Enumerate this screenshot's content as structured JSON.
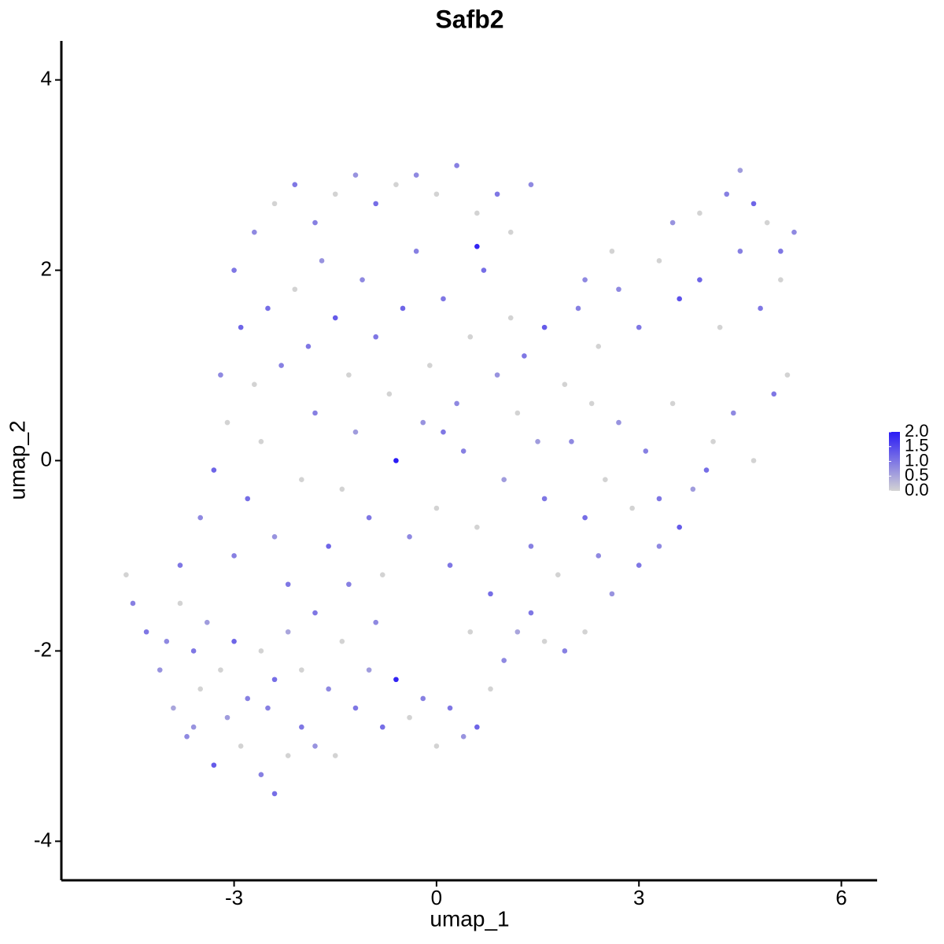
{
  "chart_data": {
    "type": "scatter",
    "title": "Safb2",
    "x_label": "umap_1",
    "y_label": "umap_2",
    "xlim": [
      -5.56,
      6.53
    ],
    "ylim": [
      -4.41,
      4.41
    ],
    "xticks": [
      -3,
      0,
      3,
      6
    ],
    "yticks": [
      -4,
      -2,
      0,
      2,
      4
    ],
    "colors": [
      "#d3d3d3",
      "#2a1bf5"
    ],
    "colorlim": [
      0,
      2
    ],
    "colorticks": [
      {
        "value": 0,
        "label": "0.0"
      },
      {
        "value": 0.5,
        "label": "0.5"
      },
      {
        "value": 1,
        "label": "1.0"
      },
      {
        "value": 1.5,
        "label": "1.5"
      },
      {
        "value": 2,
        "label": "2.0"
      }
    ],
    "x": [
      -4.6,
      -4.5,
      -4.3,
      -4.1,
      -3.9,
      -3.7,
      -3.5,
      -3.3,
      -3.1,
      -2.9,
      -2.6,
      -2.4,
      -2.2,
      -2.0,
      -1.8,
      -1.5,
      -4.0,
      -3.8,
      -3.6,
      -3.4,
      -3.2,
      -3.0,
      -2.8,
      -2.6,
      -2.4,
      -2.2,
      -2.0,
      -1.8,
      -1.6,
      -1.4,
      -1.2,
      -1.0,
      -0.8,
      -0.6,
      -0.4,
      -0.2,
      0.0,
      0.2,
      0.4,
      0.6,
      0.8,
      1.0,
      1.2,
      1.4,
      1.6,
      1.9,
      2.2,
      2.6,
      3.0,
      3.3,
      3.6,
      -3.8,
      -3.5,
      -3.3,
      -3.1,
      -3.0,
      -2.8,
      -2.6,
      -2.4,
      -2.2,
      -2.0,
      -1.8,
      -1.6,
      -1.4,
      -1.2,
      -1.0,
      -0.8,
      -0.6,
      -0.4,
      -0.2,
      0.0,
      0.2,
      0.4,
      0.6,
      0.8,
      1.0,
      1.2,
      1.4,
      1.6,
      1.8,
      2.0,
      2.2,
      2.5,
      2.7,
      2.9,
      3.1,
      3.3,
      3.5,
      3.8,
      4.1,
      4.4,
      4.7,
      5.0,
      5.2,
      -3.2,
      -2.9,
      -2.7,
      -2.5,
      -2.3,
      -2.1,
      -1.9,
      -1.7,
      -1.5,
      -1.3,
      -1.1,
      -0.9,
      -0.7,
      -0.5,
      -0.3,
      -0.1,
      0.1,
      0.3,
      0.5,
      0.7,
      0.9,
      1.1,
      1.3,
      1.6,
      1.9,
      2.1,
      2.4,
      2.7,
      3.0,
      3.3,
      3.6,
      3.9,
      4.2,
      4.5,
      4.8,
      5.1,
      5.3,
      -3.0,
      -2.7,
      -2.4,
      -2.1,
      -1.8,
      -1.5,
      -1.2,
      -0.9,
      -0.6,
      -0.3,
      0.0,
      0.3,
      0.6,
      0.9,
      1.1,
      1.4,
      0.6,
      3.5,
      3.9,
      4.3,
      4.5,
      4.7,
      4.9,
      5.1,
      2.2,
      2.6,
      1.5,
      2.3,
      0.1,
      -0.9,
      -2.5,
      -3.6,
      -1.3,
      0.5,
      2.4,
      4.0
    ],
    "y": [
      -1.2,
      -1.5,
      -1.8,
      -2.2,
      -2.6,
      -2.9,
      -2.4,
      -3.2,
      -2.7,
      -3.0,
      -3.3,
      -3.5,
      -3.1,
      -2.8,
      -3.0,
      -3.1,
      -1.9,
      -1.5,
      -2.0,
      -1.7,
      -2.2,
      -1.9,
      -2.5,
      -2.0,
      -2.3,
      -1.8,
      -2.2,
      -1.6,
      -2.4,
      -1.9,
      -2.6,
      -2.2,
      -2.8,
      -2.3,
      -2.7,
      -2.5,
      -3.0,
      -2.6,
      -2.9,
      -2.8,
      -2.4,
      -2.1,
      -1.8,
      -1.6,
      -1.9,
      -2.0,
      -1.8,
      -1.4,
      -1.1,
      -0.9,
      -0.7,
      -1.1,
      -0.6,
      -0.1,
      0.4,
      -1.0,
      -0.4,
      0.2,
      -0.8,
      -1.3,
      -0.2,
      0.5,
      -0.9,
      -0.3,
      0.3,
      -0.6,
      -1.2,
      0.0,
      -0.8,
      0.4,
      -0.5,
      -1.1,
      0.1,
      -0.7,
      -1.4,
      -0.2,
      0.5,
      -0.9,
      -0.4,
      -1.2,
      0.2,
      -0.6,
      -0.2,
      0.4,
      -0.5,
      0.1,
      -0.4,
      0.6,
      -0.3,
      0.2,
      0.5,
      0.0,
      0.7,
      0.9,
      0.9,
      1.4,
      0.8,
      1.6,
      1.0,
      1.8,
      1.2,
      2.1,
      1.5,
      0.9,
      1.9,
      1.3,
      0.7,
      1.6,
      2.2,
      1.0,
      1.7,
      0.6,
      1.3,
      2.0,
      0.9,
      1.5,
      1.1,
      1.4,
      0.8,
      1.6,
      1.2,
      1.8,
      1.4,
      2.1,
      1.7,
      1.9,
      1.4,
      2.2,
      1.6,
      1.9,
      2.4,
      2.0,
      2.4,
      2.7,
      2.9,
      2.5,
      2.8,
      3.0,
      2.7,
      2.9,
      3.0,
      2.8,
      3.1,
      2.6,
      2.8,
      2.4,
      2.9,
      2.25,
      2.5,
      2.6,
      2.8,
      3.05,
      2.7,
      2.5,
      2.2,
      1.9,
      2.2,
      0.2,
      0.6,
      0.3,
      -1.7,
      -2.6,
      -2.8,
      -1.3,
      -1.8,
      -1.0,
      -0.1
    ],
    "values": [
      0,
      0.9,
      1.0,
      0.7,
      0.5,
      0.8,
      0,
      1.3,
      0.6,
      0,
      0.9,
      1.1,
      0,
      1.0,
      0.7,
      0,
      0.8,
      0,
      1.0,
      0.6,
      0,
      1.2,
      0.9,
      0,
      1.1,
      0.5,
      0,
      1.0,
      0.8,
      0,
      1.0,
      0.6,
      1.1,
      1.9,
      0,
      0.9,
      0,
      1.0,
      0.7,
      1.2,
      0,
      0.8,
      0.5,
      1.0,
      0,
      0.9,
      0,
      0.7,
      1.0,
      0.8,
      1.3,
      1.0,
      0.8,
      1.2,
      0,
      0.9,
      1.1,
      0,
      0.7,
      1.0,
      0,
      0.9,
      1.2,
      0,
      0.6,
      1.0,
      0,
      2.0,
      0.8,
      0.7,
      0,
      1.0,
      0.9,
      0,
      1.1,
      0.6,
      0,
      0.9,
      1.0,
      0,
      0.8,
      1.1,
      0,
      0.7,
      0,
      0.9,
      1.0,
      0,
      0.6,
      0,
      0.8,
      0,
      1.0,
      0,
      0.8,
      1.2,
      0,
      1.1,
      0.9,
      0,
      1.0,
      0.7,
      1.3,
      0,
      0.8,
      1.0,
      0,
      1.2,
      0.9,
      0,
      1.0,
      0.8,
      0,
      1.1,
      0.7,
      0,
      1.0,
      1.3,
      0,
      0.9,
      0,
      0.8,
      1.0,
      0,
      1.4,
      1.2,
      0,
      0.9,
      1.0,
      0,
      0.8,
      1.0,
      0.8,
      0,
      1.0,
      0.9,
      0,
      0.7,
      1.1,
      0,
      0.8,
      0,
      0.9,
      0,
      1.0,
      0,
      0.8,
      1.9,
      0.7,
      0,
      0.9,
      0.6,
      1.2,
      0,
      1.0,
      0.8,
      0,
      0.6,
      0,
      1.0,
      0.8,
      0.9,
      0.7,
      0.9,
      0,
      0.8,
      1.1
    ]
  }
}
